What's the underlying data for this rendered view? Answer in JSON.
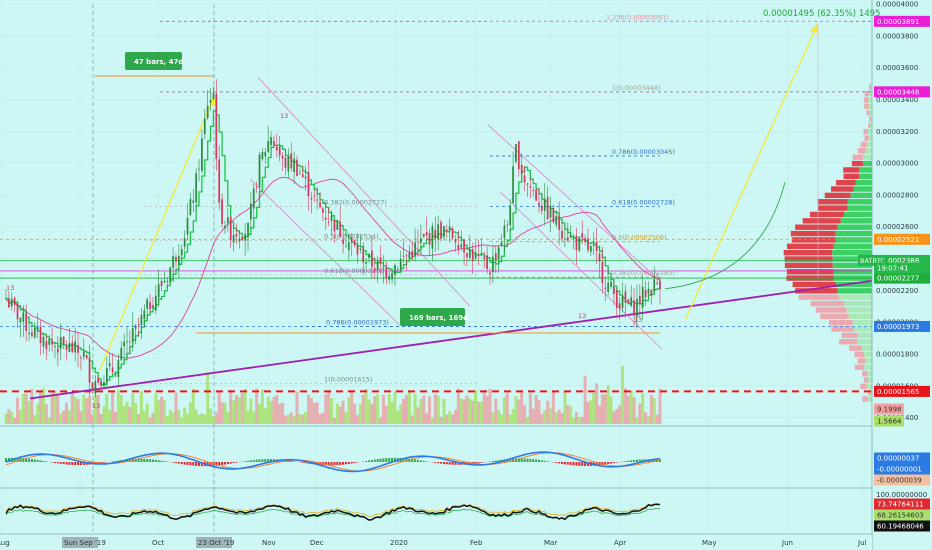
{
  "header": {
    "change_text": "0.00001495 (62.35%) 1495"
  },
  "chart_data": {
    "type": "candlestick",
    "symbol": "BATBTC",
    "y_axis_ticks": [
      "0.00004000",
      "0.00003800",
      "0.00003600",
      "0.00003400",
      "0.00003200",
      "0.00003000",
      "0.00002800",
      "0.00002600",
      "0.00002400",
      "0.00002200",
      "0.00002000",
      "0.00001800",
      "0.00001600",
      "0.00001400"
    ],
    "ylim": [
      1.36e-05,
      4e-05
    ],
    "x_labels": [
      "Aug",
      "Sun Sep '19",
      "Oct",
      "23 Oct '19",
      "Nov",
      "Dec",
      "2020",
      "Feb",
      "Mar",
      "Apr",
      "May",
      "Jun",
      "Jul"
    ],
    "price_path": [
      [
        0,
        2.15e-05
      ],
      [
        4,
        2.05e-05
      ],
      [
        8,
        1.96e-05
      ],
      [
        12,
        1.9e-05
      ],
      [
        16,
        1.86e-05
      ],
      [
        22,
        1.84e-05
      ],
      [
        27,
        1.79e-05
      ],
      [
        30,
        1.62e-05
      ],
      [
        34,
        1.67e-05
      ],
      [
        38,
        1.71e-05
      ],
      [
        41,
        1.83e-05
      ],
      [
        45,
        1.94e-05
      ],
      [
        50,
        2.12e-05
      ],
      [
        56,
        2.3e-05
      ],
      [
        62,
        2.56e-05
      ],
      [
        66,
        2.88e-05
      ],
      [
        70,
        3.38e-05
      ],
      [
        72,
        3.44e-05
      ],
      [
        74,
        2.7e-05
      ],
      [
        78,
        2.57e-05
      ],
      [
        84,
        2.58e-05
      ],
      [
        88,
        3e-05
      ],
      [
        92,
        3.18e-05
      ],
      [
        96,
        3e-05
      ],
      [
        100,
        3e-05
      ],
      [
        104,
        2.88e-05
      ],
      [
        108,
        2.73e-05
      ],
      [
        114,
        2.62e-05
      ],
      [
        120,
        2.48e-05
      ],
      [
        126,
        2.38e-05
      ],
      [
        132,
        2.32e-05
      ],
      [
        138,
        2.4e-05
      ],
      [
        144,
        2.5e-05
      ],
      [
        150,
        2.58e-05
      ],
      [
        156,
        2.54e-05
      ],
      [
        162,
        2.42e-05
      ],
      [
        168,
        2.34e-05
      ],
      [
        174,
        2.62e-05
      ],
      [
        177,
        3.08e-05
      ],
      [
        180,
        2.9e-05
      ],
      [
        186,
        2.74e-05
      ],
      [
        192,
        2.6e-05
      ],
      [
        198,
        2.5e-05
      ],
      [
        204,
        2.44e-05
      ],
      [
        208,
        2.26e-05
      ],
      [
        213,
        2.12e-05
      ],
      [
        218,
        2.1e-05
      ],
      [
        222,
        2.19e-05
      ],
      [
        227,
        2.26e-05
      ]
    ],
    "volume_profile_levels": 25,
    "horizontal_levels": [
      {
        "price": 3.891e-05,
        "label": "0.00003891",
        "color": "#e91ed6",
        "style": "dashed"
      },
      {
        "price": 3.448e-05,
        "label": "0.00003448",
        "color": "#e91ed6",
        "style": "dashed"
      },
      {
        "price": 2.521e-05,
        "label": "0.00002521",
        "color": "#f7931a",
        "style": "dashed"
      },
      {
        "price": 2.388e-05,
        "label": "0.00002388",
        "color": "#26b84a",
        "style": "solid"
      },
      {
        "price": 2.322e-05,
        "label": "0.00002322",
        "color": "#e91ed6",
        "style": "solid"
      },
      {
        "price": 2.277e-05,
        "label": "0.00002277",
        "color": "#1fae3a",
        "style": "solid"
      },
      {
        "price": 1.973e-05,
        "label": "0.00001973",
        "color": "#2c7be5",
        "style": "dashed"
      },
      {
        "price": 1.565e-05,
        "label": "0.00001565",
        "color": "#e8141c",
        "style": "dashed"
      }
    ],
    "fib_levels": [
      {
        "label": "1.236(0.00003891)",
        "price": 3.891e-05,
        "color": "#e58fa0"
      },
      {
        "label": "1(0.00003448)",
        "price": 3.448e-05,
        "color": "#a0a0a0"
      },
      {
        "label": "0.786(0.00003045)",
        "price": 3.045e-05,
        "color": "#2c6fcb"
      },
      {
        "label": "0.618(0.00002728)",
        "price": 2.728e-05,
        "color": "#2c6fcb"
      },
      {
        "label": "0.5(0.00002506)",
        "price": 2.506e-05,
        "color": "#d69b1e"
      },
      {
        "label": "0.382(0.00002283)",
        "price": 2.283e-05,
        "color": "#a0a0a0"
      },
      {
        "label": "0.786(0.00001973)",
        "price": 1.973e-05,
        "color": "#2c6fcb"
      }
    ],
    "fib_left_levels": [
      {
        "label": "0.382(0.00002727)",
        "price": 2.727e-05
      },
      {
        "label": "0.5(0.00002514)",
        "price": 2.514e-05
      },
      {
        "label": "0.618(0.00002298)",
        "price": 2.298e-05
      },
      {
        "label": "1(0.00001615)",
        "price": 1.615e-05
      }
    ],
    "annotations": {
      "bars_range_1": "47 bars, 47d",
      "bars_range_2": "169 bars, 169d",
      "counter_13_labels": [
        "13",
        "13",
        "13",
        "13",
        "13"
      ],
      "symbol_tag": "BATBTC",
      "countdown": "19:07:41",
      "vol_label_1": "9.1998",
      "vol_label_2": "1.5664"
    },
    "macd_labels": {
      "a": "0.00000037",
      "b": "-0.00000001",
      "c": "-0.00000039"
    },
    "rsi_labels": {
      "a": "100.00000000",
      "b": "73.74764111",
      "c": "68.26154603",
      "d": "60.19468046"
    }
  }
}
